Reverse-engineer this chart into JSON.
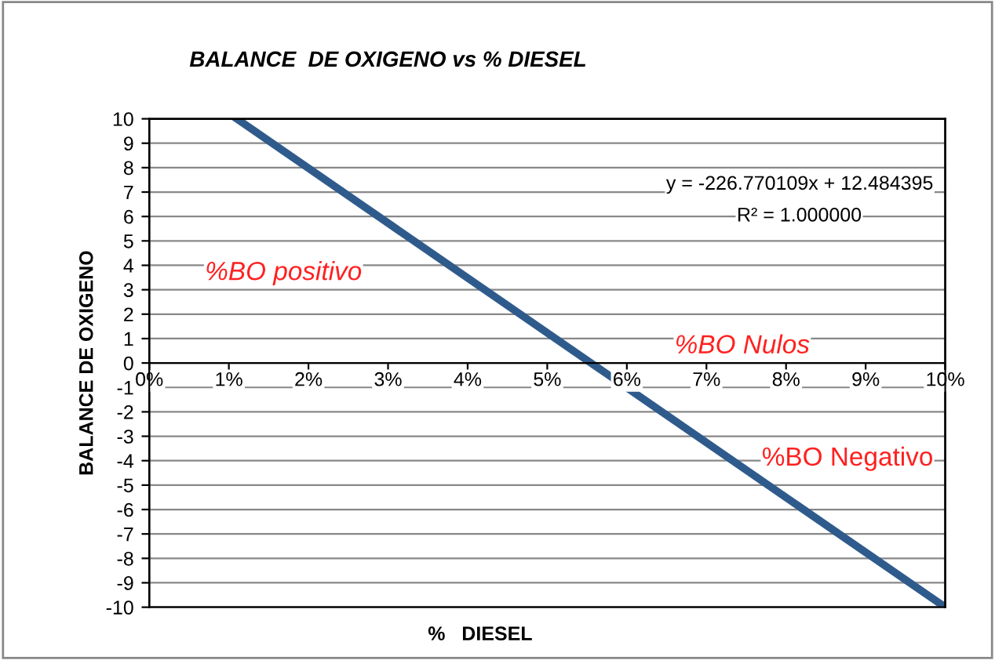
{
  "chart_data": {
    "type": "line",
    "title": "BALANCE  DE OXIGENO vs % DIESEL",
    "xlabel": "%   DIESEL",
    "ylabel": "BALANCE DE OXIGENO",
    "annotations": [
      "y = -226.770109x + 12.484395",
      "R² = 1.000000",
      "%BO positivo",
      "%BO Nulos",
      "%BO Negativo"
    ],
    "series": [
      {
        "x": [
          0.011,
          0.1
        ],
        "values": [
          10,
          -10
        ],
        "color": "#2f5b8c"
      }
    ],
    "xlim": [
      0,
      0.1
    ],
    "xticks": [
      {
        "value": 0,
        "label": "0%"
      },
      {
        "value": 0.01,
        "label": "1%"
      },
      {
        "value": 0.02,
        "label": "2%"
      },
      {
        "value": 0.03,
        "label": "3%"
      },
      {
        "value": 0.04,
        "label": "4%"
      },
      {
        "value": 0.05,
        "label": "5%"
      },
      {
        "value": 0.06,
        "label": "6%"
      },
      {
        "value": 0.07,
        "label": "7%"
      },
      {
        "value": 0.08,
        "label": "8%"
      },
      {
        "value": 0.09,
        "label": "9%"
      },
      {
        "value": 0.1,
        "label": "10%"
      }
    ],
    "ylim": [
      -10,
      10
    ],
    "yticks": [
      -10,
      -9,
      -8,
      -7,
      -6,
      -5,
      -4,
      -3,
      -2,
      -1,
      0,
      1,
      2,
      3,
      4,
      5,
      6,
      7,
      8,
      9,
      10
    ],
    "grid": "y",
    "legend": false,
    "marker": "none",
    "line_style": "solid"
  }
}
